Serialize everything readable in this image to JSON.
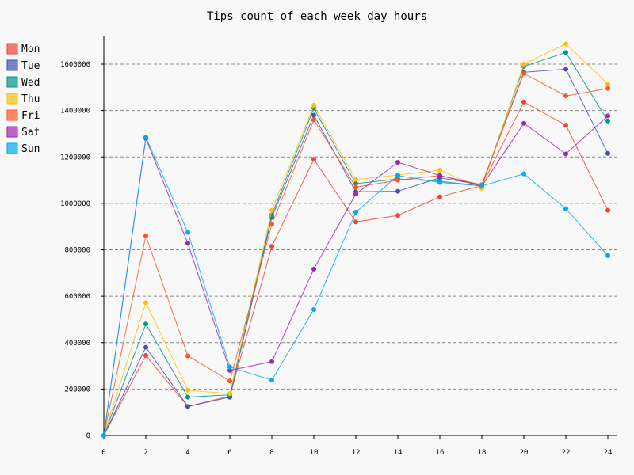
{
  "chart_data": {
    "type": "line",
    "title": "Tips count of each week day hours",
    "xlabel": "",
    "ylabel": "",
    "x": [
      0,
      2,
      4,
      6,
      8,
      10,
      12,
      14,
      16,
      18,
      20,
      22,
      24
    ],
    "x_ticks": [
      "0",
      "2",
      "4",
      "6",
      "8",
      "10",
      "12",
      "14",
      "16",
      "18",
      "20",
      "22",
      "24"
    ],
    "xlim": [
      0,
      24
    ],
    "y_ticks": [
      "0",
      "200000",
      "400000",
      "600000",
      "800000",
      "1000000",
      "1200000",
      "1400000",
      "1600000"
    ],
    "ylim": [
      0,
      1720000
    ],
    "grid": true,
    "legend_position": "top-left",
    "series": [
      {
        "name": "Mon",
        "color": "#f44336",
        "values": [
          0,
          345000,
          125000,
          170000,
          815000,
          1190000,
          920000,
          948000,
          1028000,
          1077000,
          1437000,
          1337000,
          970000
        ]
      },
      {
        "name": "Tue",
        "color": "#3f51b5",
        "values": [
          0,
          380000,
          125000,
          165000,
          940000,
          1380000,
          1050000,
          1052000,
          1110000,
          1080000,
          1565000,
          1578000,
          1215000
        ]
      },
      {
        "name": "Wed",
        "color": "#009688",
        "values": [
          0,
          480000,
          165000,
          175000,
          950000,
          1410000,
          1085000,
          1105000,
          1095000,
          1075000,
          1590000,
          1650000,
          1355000
        ]
      },
      {
        "name": "Thu",
        "color": "#ffc107",
        "values": [
          0,
          572000,
          195000,
          180000,
          970000,
          1423000,
          1103000,
          1122000,
          1143000,
          1065000,
          1600000,
          1687000,
          1515000
        ]
      },
      {
        "name": "Fri",
        "color": "#ff5722",
        "values": [
          0,
          860000,
          343000,
          235000,
          910000,
          1360000,
          1070000,
          1100000,
          1120000,
          1080000,
          1560000,
          1463000,
          1495000
        ]
      },
      {
        "name": "Sat",
        "color": "#9c27b0",
        "values": [
          0,
          1280000,
          828000,
          280000,
          318000,
          717000,
          1040000,
          1177000,
          1120000,
          1075000,
          1345000,
          1213000,
          1377000
        ]
      },
      {
        "name": "Sun",
        "color": "#03a9f4",
        "values": [
          0,
          1285000,
          875000,
          295000,
          238000,
          543000,
          962000,
          1120000,
          1090000,
          1075000,
          1127000,
          977000,
          775000
        ]
      }
    ]
  }
}
